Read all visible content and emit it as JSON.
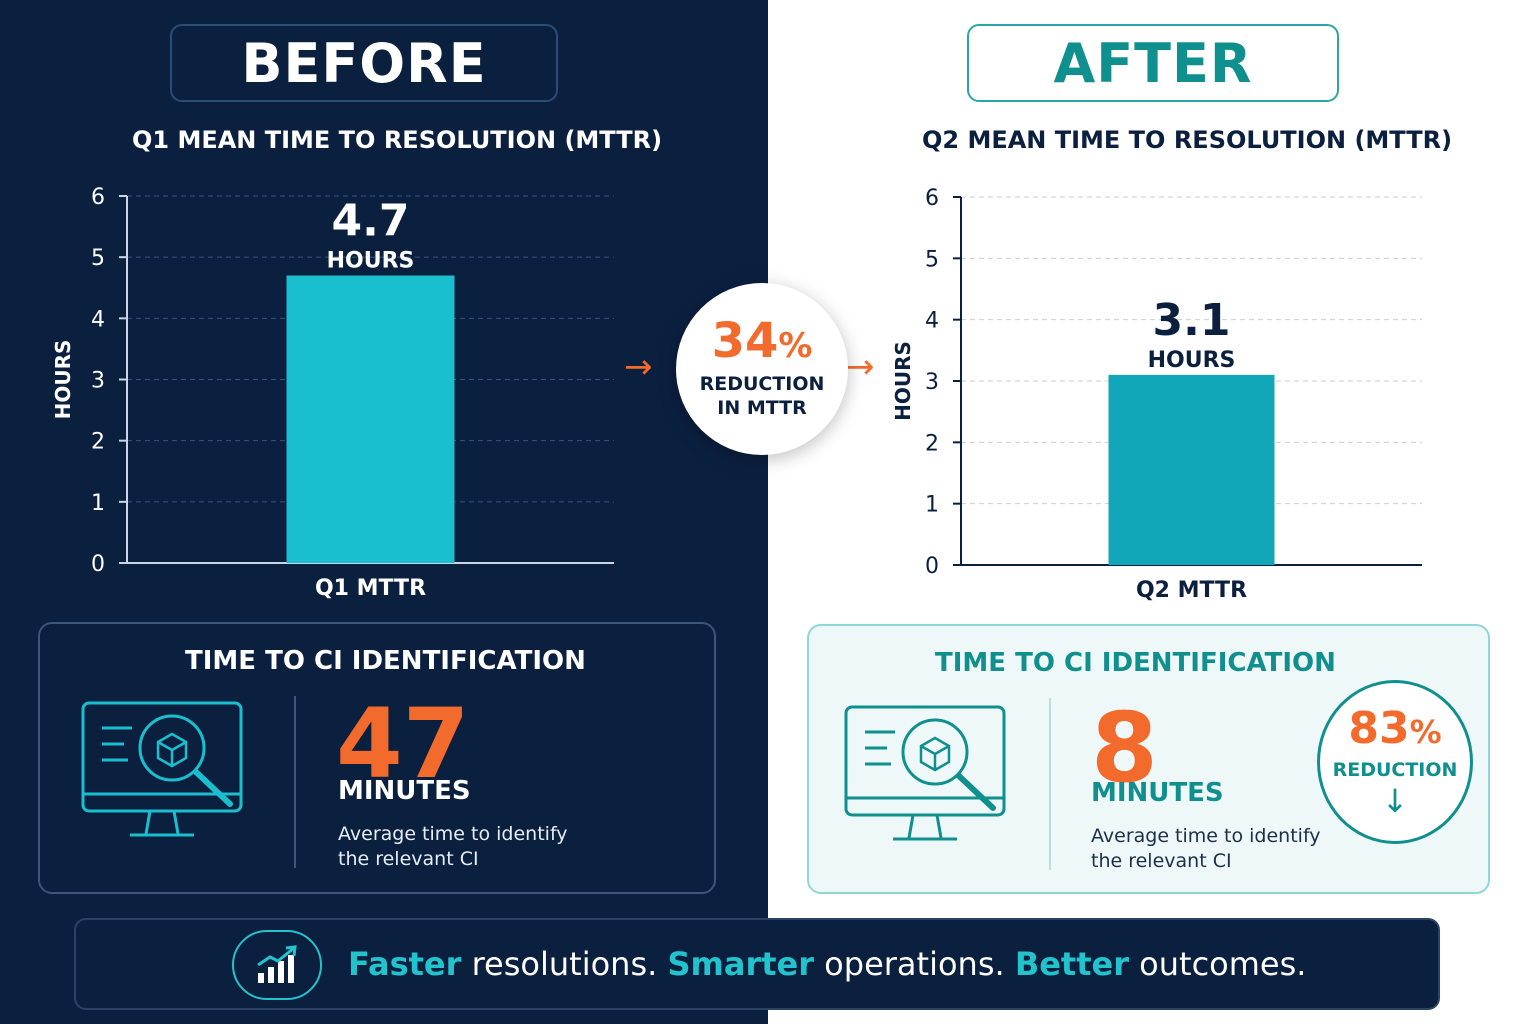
{
  "colors": {
    "navy": "#0b1f3f",
    "teal": "#0f8f8e",
    "cyan_bar": "#19bfcf",
    "teal_bar": "#12a7b8",
    "orange": "#f26a2c"
  },
  "before": {
    "label": "BEFORE",
    "ci": {
      "title": "TIME TO CI IDENTIFICATION",
      "value": "47",
      "unit": "MINUTES",
      "description": "Average time to identify the relevant CI",
      "icon": "monitor-search-cube-icon"
    }
  },
  "after": {
    "label": "AFTER",
    "ci": {
      "title": "TIME TO CI IDENTIFICATION",
      "value": "8",
      "unit": "MINUTES",
      "description": "Average time to identify the relevant CI",
      "icon": "monitor-search-cube-icon",
      "reduction_pct": "83",
      "reduction_sign": "%",
      "reduction_label": "REDUCTION",
      "reduction_icon": "arrow-down-icon"
    }
  },
  "center": {
    "pct": "34",
    "sign": "%",
    "line1": "REDUCTION",
    "line2": "IN MTTR",
    "arrow_icon": "arrow-right-icon"
  },
  "banner": {
    "icon": "growth-chart-icon",
    "w1": "Faster",
    "t1": " resolutions. ",
    "w2": "Smarter",
    "t2": " operations. ",
    "w3": "Better",
    "t3": " outcomes."
  },
  "chart_data": [
    {
      "type": "bar",
      "title": "Q1 MEAN TIME TO RESOLUTION (MTTR)",
      "categories": [
        "Q1 MTTR"
      ],
      "values": [
        4.7
      ],
      "value_label": "4.7",
      "value_unit": "HOURS",
      "ylabel": "HOURS",
      "ylim": [
        0,
        6
      ],
      "yticks": [
        0,
        1,
        2,
        3,
        4,
        5,
        6
      ],
      "grid": true
    },
    {
      "type": "bar",
      "title": "Q2 MEAN TIME TO RESOLUTION (MTTR)",
      "categories": [
        "Q2 MTTR"
      ],
      "values": [
        3.1
      ],
      "value_label": "3.1",
      "value_unit": "HOURS",
      "ylabel": "HOURS",
      "ylim": [
        0,
        6
      ],
      "yticks": [
        0,
        1,
        2,
        3,
        4,
        5,
        6
      ],
      "grid": true
    }
  ]
}
